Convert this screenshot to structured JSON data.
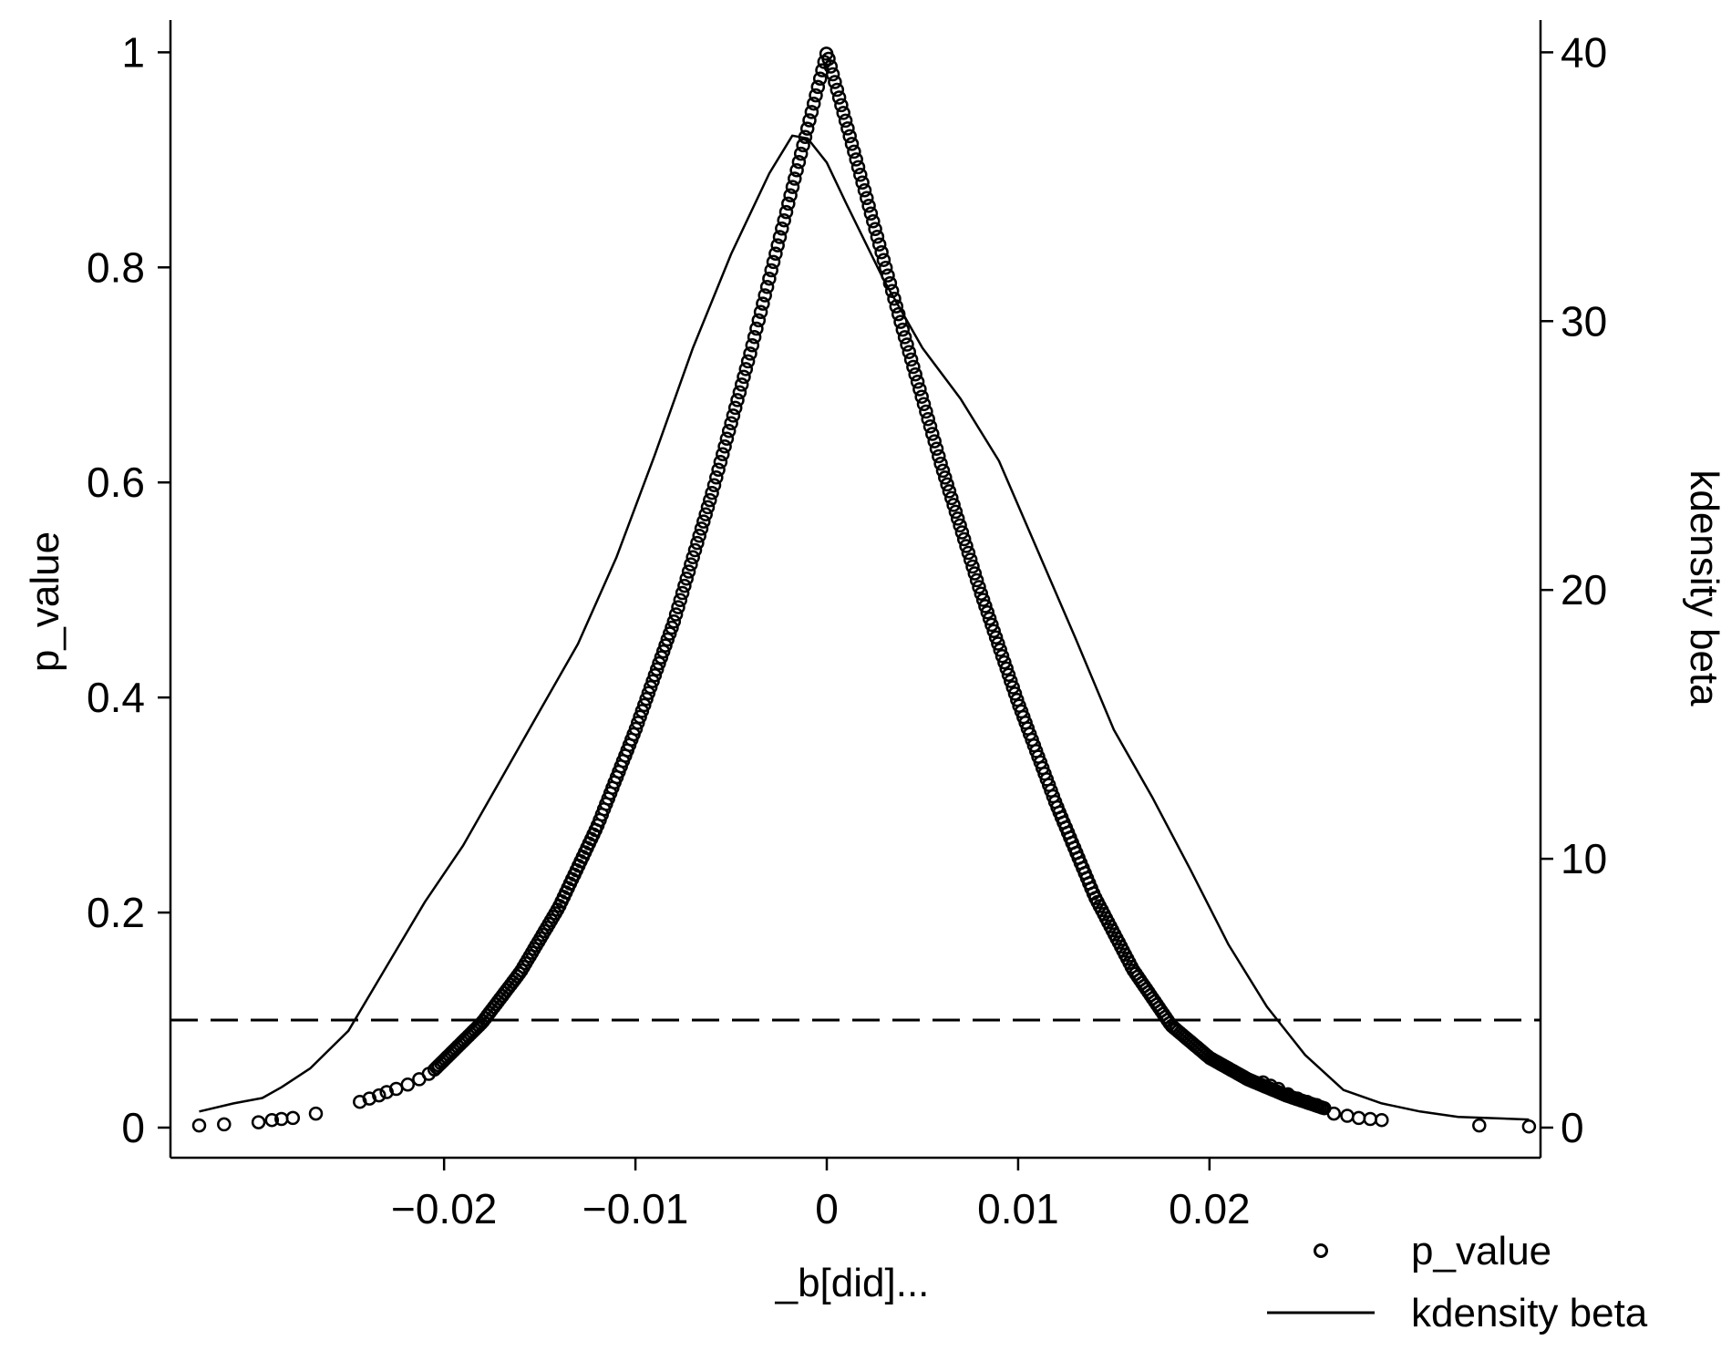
{
  "chart_data": {
    "type": "scatter",
    "title": "",
    "xlabel": "_b[did]...",
    "ylabel": "p_value",
    "y2label": "kdensity beta",
    "xlim": [
      -0.0343,
      0.0373
    ],
    "ylim": [
      -0.028,
      1.03
    ],
    "y2lim": [
      -1.12,
      41.2
    ],
    "xticks": [
      -0.02,
      -0.01,
      0,
      0.01,
      0.02
    ],
    "xtick_labels": [
      "−0.02",
      "−0.01",
      "0",
      "0.01",
      "0.02"
    ],
    "yticks": [
      0,
      0.2,
      0.4,
      0.6,
      0.8,
      1
    ],
    "ytick_labels": [
      "0",
      "0.2",
      "0.4",
      "0.6",
      "0.8",
      "1"
    ],
    "y2ticks": [
      0,
      10,
      20,
      30,
      40
    ],
    "y2tick_labels": [
      "0",
      "10",
      "20",
      "30",
      "40"
    ],
    "reference_line": {
      "axis": "y",
      "value": 0.1,
      "style": "dashed"
    },
    "grid": false,
    "legend": {
      "position": "bottom-right",
      "entries": [
        {
          "label": "p_value",
          "marker": "hollow-circle"
        },
        {
          "label": "kdensity beta",
          "marker": "line"
        }
      ]
    },
    "series": [
      {
        "name": "p_value",
        "kind": "scatter",
        "axis": "left",
        "points": [
          [
            -0.0328,
            0.002
          ],
          [
            -0.0315,
            0.003
          ],
          [
            -0.0297,
            0.005
          ],
          [
            -0.029,
            0.007
          ],
          [
            -0.0285,
            0.008
          ],
          [
            -0.0279,
            0.009
          ],
          [
            -0.0267,
            0.013
          ],
          [
            -0.0244,
            0.024
          ],
          [
            -0.0239,
            0.027
          ],
          [
            -0.0234,
            0.03
          ],
          [
            -0.023,
            0.033
          ],
          [
            -0.0225,
            0.036
          ],
          [
            -0.0219,
            0.04
          ],
          [
            -0.0213,
            0.045
          ],
          [
            -0.0208,
            0.05
          ],
          [
            0.0228,
            0.042
          ],
          [
            0.0232,
            0.039
          ],
          [
            0.0236,
            0.036
          ],
          [
            0.0241,
            0.031
          ],
          [
            0.0246,
            0.027
          ],
          [
            0.0251,
            0.024
          ],
          [
            0.0256,
            0.021
          ],
          [
            0.0265,
            0.013
          ],
          [
            0.0272,
            0.011
          ],
          [
            0.0278,
            0.009
          ],
          [
            0.0284,
            0.008
          ],
          [
            0.029,
            0.007
          ],
          [
            0.0341,
            0.002
          ],
          [
            0.0367,
            0.001
          ]
        ],
        "dense_curve": {
          "x_range": [
            -0.0205,
            0.026
          ],
          "formula_note": "p_value of coefficient, peaks at 1 at x=0",
          "samples": [
            [
              -0.0205,
              0.054
            ],
            [
              -0.018,
              0.098
            ],
            [
              -0.016,
              0.145
            ],
            [
              -0.014,
              0.205
            ],
            [
              -0.012,
              0.28
            ],
            [
              -0.01,
              0.37
            ],
            [
              -0.008,
              0.47
            ],
            [
              -0.006,
              0.59
            ],
            [
              -0.004,
              0.72
            ],
            [
              -0.002,
              0.86
            ],
            [
              0,
              1.0
            ],
            [
              0.002,
              0.87
            ],
            [
              0.004,
              0.74
            ],
            [
              0.006,
              0.615
            ],
            [
              0.008,
              0.5
            ],
            [
              0.01,
              0.395
            ],
            [
              0.012,
              0.3
            ],
            [
              0.014,
              0.215
            ],
            [
              0.016,
              0.147
            ],
            [
              0.018,
              0.095
            ],
            [
              0.02,
              0.065
            ],
            [
              0.022,
              0.045
            ],
            [
              0.024,
              0.03
            ],
            [
              0.026,
              0.018
            ]
          ]
        }
      },
      {
        "name": "kdensity beta",
        "kind": "line",
        "axis": "right",
        "points": [
          [
            -0.0328,
            0.6
          ],
          [
            -0.031,
            0.9
          ],
          [
            -0.0295,
            1.1
          ],
          [
            -0.0285,
            1.5
          ],
          [
            -0.027,
            2.2
          ],
          [
            -0.025,
            3.6
          ],
          [
            -0.023,
            6.0
          ],
          [
            -0.021,
            8.4
          ],
          [
            -0.019,
            10.5
          ],
          [
            -0.017,
            13.0
          ],
          [
            -0.015,
            15.5
          ],
          [
            -0.013,
            18.0
          ],
          [
            -0.011,
            21.2
          ],
          [
            -0.009,
            25.0
          ],
          [
            -0.007,
            29.0
          ],
          [
            -0.005,
            32.5
          ],
          [
            -0.003,
            35.5
          ],
          [
            -0.0018,
            36.9
          ],
          [
            -0.001,
            36.8
          ],
          [
            0,
            35.9
          ],
          [
            0.001,
            34.4
          ],
          [
            0.003,
            31.5
          ],
          [
            0.005,
            29.0
          ],
          [
            0.007,
            27.1
          ],
          [
            0.009,
            24.8
          ],
          [
            0.011,
            21.5
          ],
          [
            0.013,
            18.2
          ],
          [
            0.015,
            14.8
          ],
          [
            0.017,
            12.3
          ],
          [
            0.019,
            9.6
          ],
          [
            0.021,
            6.8
          ],
          [
            0.023,
            4.5
          ],
          [
            0.025,
            2.7
          ],
          [
            0.027,
            1.4
          ],
          [
            0.029,
            0.9
          ],
          [
            0.031,
            0.6
          ],
          [
            0.033,
            0.4
          ],
          [
            0.035,
            0.35
          ],
          [
            0.0367,
            0.3
          ]
        ]
      }
    ]
  }
}
